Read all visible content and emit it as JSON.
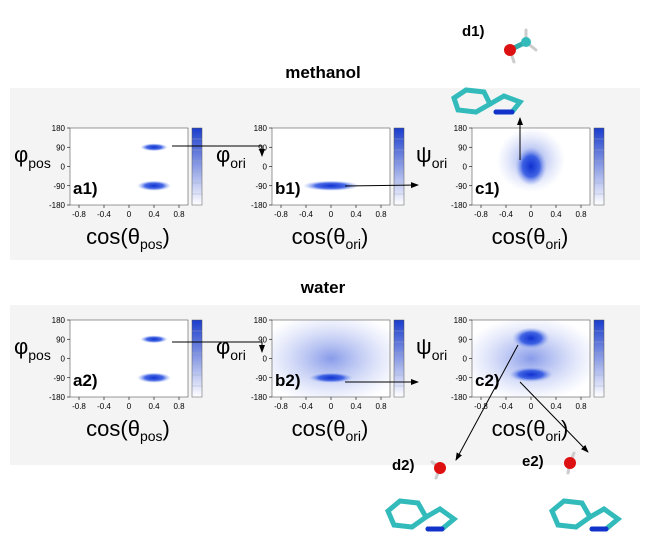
{
  "titles": {
    "top": "methanol",
    "bottom": "water"
  },
  "panels": [
    {
      "label": "a1)",
      "x_label": {
        "pre": "cos(θ",
        "sub": "pos",
        "post": ")"
      },
      "y_label": {
        "sym": "φ",
        "sub": "pos"
      },
      "xticks": [
        "-0.8",
        "-0.4",
        "0",
        "0.4",
        "0.8"
      ],
      "yticks": [
        "180",
        "90",
        "0",
        "-90",
        "-180"
      ]
    },
    {
      "label": "b1)",
      "x_label": {
        "pre": "cos(θ",
        "sub": "ori",
        "post": ")"
      },
      "y_label": {
        "sym": "φ",
        "sub": "ori"
      },
      "xticks": [
        "-0.8",
        "-0.4",
        "0",
        "0.4",
        "0.8"
      ],
      "yticks": [
        "180",
        "90",
        "0",
        "-90",
        "-180"
      ]
    },
    {
      "label": "c1)",
      "x_label": {
        "pre": "cos(θ",
        "sub": "ori",
        "post": ")"
      },
      "y_label": {
        "sym": "ψ",
        "sub": "ori"
      },
      "xticks": [
        "-0.8",
        "-0.4",
        "0",
        "0.4",
        "0.8"
      ],
      "yticks": [
        "180",
        "90",
        "0",
        "-90",
        "-180"
      ]
    },
    {
      "label": "a2)",
      "x_label": {
        "pre": "cos(θ",
        "sub": "pos",
        "post": ")"
      },
      "y_label": {
        "sym": "φ",
        "sub": "pos"
      },
      "xticks": [
        "-0.8",
        "-0.4",
        "0",
        "0.4",
        "0.8"
      ],
      "yticks": [
        "180",
        "90",
        "0",
        "-90",
        "-180"
      ]
    },
    {
      "label": "b2)",
      "x_label": {
        "pre": "cos(θ",
        "sub": "ori",
        "post": ")"
      },
      "y_label": {
        "sym": "φ",
        "sub": "ori"
      },
      "xticks": [
        "-0.8",
        "-0.4",
        "0",
        "0.4",
        "0.8"
      ],
      "yticks": [
        "180",
        "90",
        "0",
        "-90",
        "-180"
      ]
    },
    {
      "label": "c2)",
      "x_label": {
        "pre": "cos(θ",
        "sub": "ori",
        "post": ")"
      },
      "y_label": {
        "sym": "ψ",
        "sub": "ori"
      },
      "xticks": [
        "-0.8",
        "-0.4",
        "0",
        "0.4",
        "0.8"
      ],
      "yticks": [
        "180",
        "90",
        "0",
        "-90",
        "-180"
      ]
    }
  ],
  "molecules": [
    {
      "label": "d1)"
    },
    {
      "label": "d2)"
    },
    {
      "label": "e2)"
    }
  ]
}
